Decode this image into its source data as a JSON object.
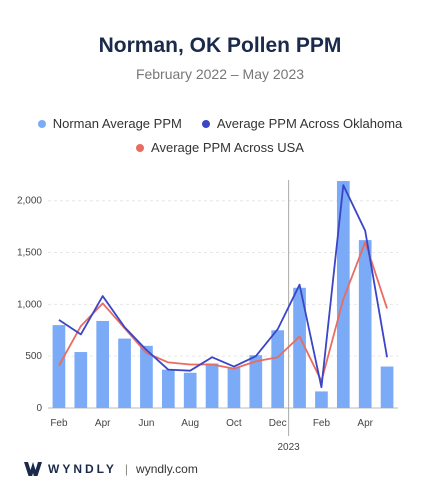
{
  "chart_data": {
    "type": "bar+line",
    "title": "Norman, OK Pollen PPM",
    "subtitle": "February 2022 – May 2023",
    "x_tick_labels": [
      "Feb",
      "Apr",
      "Jun",
      "Aug",
      "Oct",
      "Dec",
      "Feb",
      "Apr"
    ],
    "year_label": "2023",
    "y_ticks": [
      "0",
      "500",
      "1,000",
      "1,500",
      "2,000"
    ],
    "ylim": [
      0,
      2200
    ],
    "months": [
      "Feb 2022",
      "Mar 2022",
      "Apr 2022",
      "May 2022",
      "Jun 2022",
      "Jul 2022",
      "Aug 2022",
      "Sep 2022",
      "Oct 2022",
      "Nov 2022",
      "Dec 2022",
      "Jan 2023",
      "Feb 2023",
      "Mar 2023",
      "Apr 2023",
      "May 2023"
    ],
    "series": [
      {
        "name": "Norman Average PPM",
        "kind": "bar",
        "color": "#7baaf7",
        "values": [
          800,
          540,
          840,
          670,
          600,
          370,
          340,
          430,
          390,
          510,
          750,
          1160,
          160,
          2190,
          1620,
          400
        ]
      },
      {
        "name": "Average PPM Across Oklahoma",
        "kind": "line",
        "color": "#3a45c8",
        "values": [
          850,
          710,
          1080,
          780,
          560,
          370,
          360,
          490,
          400,
          500,
          760,
          1190,
          200,
          2150,
          1710,
          490
        ]
      },
      {
        "name": "Average PPM Across USA",
        "kind": "line",
        "color": "#ea6b60",
        "values": [
          410,
          790,
          1010,
          770,
          530,
          440,
          420,
          420,
          380,
          450,
          490,
          690,
          260,
          1050,
          1600,
          960
        ]
      }
    ],
    "legend_position": "top",
    "grid": true
  },
  "footer": {
    "brand": "WYNDLY",
    "site": "wyndly.com",
    "separator": "|"
  }
}
